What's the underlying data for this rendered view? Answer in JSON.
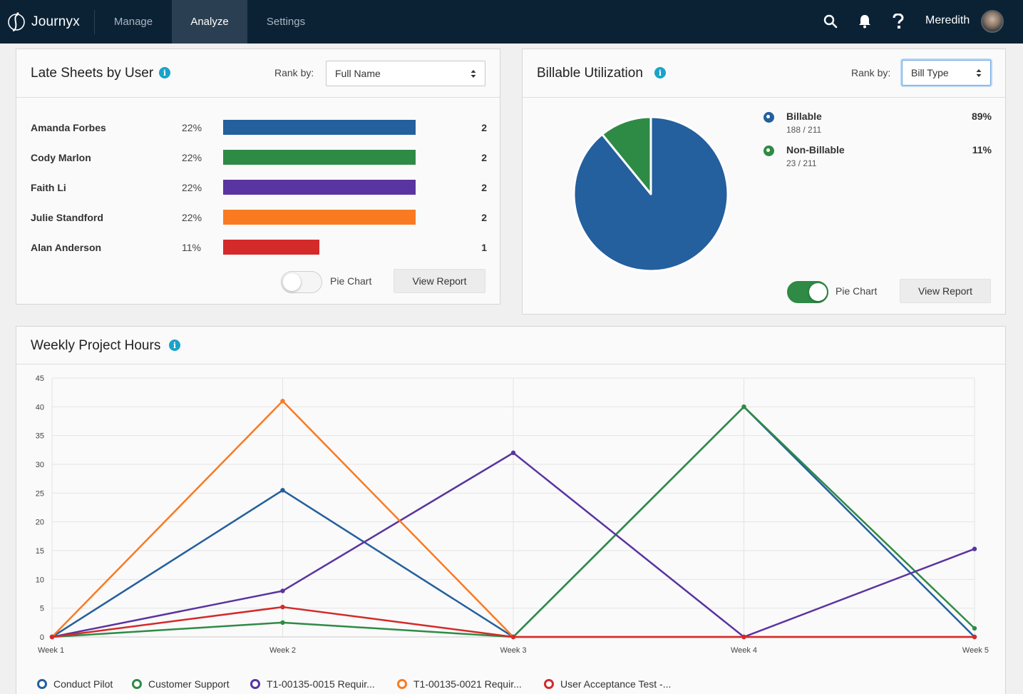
{
  "nav": {
    "brand": "Journyx",
    "tabs": [
      {
        "label": "Manage",
        "active": false
      },
      {
        "label": "Analyze",
        "active": true
      },
      {
        "label": "Settings",
        "active": false
      }
    ],
    "icons": [
      "search-icon",
      "bell-icon",
      "help-icon"
    ],
    "user_name": "Meredith"
  },
  "late_sheets": {
    "title": "Late Sheets by User",
    "rank_label": "Rank by:",
    "rank_value": "Full Name",
    "rows": [
      {
        "name": "Amanda Forbes",
        "percent": "22%",
        "count": "2",
        "fraction": 1.0,
        "color": "#245f9e"
      },
      {
        "name": "Cody Marlon",
        "percent": "22%",
        "count": "2",
        "fraction": 1.0,
        "color": "#2e8b45"
      },
      {
        "name": "Faith Li",
        "percent": "22%",
        "count": "2",
        "fraction": 1.0,
        "color": "#5a34a0"
      },
      {
        "name": "Julie Standford",
        "percent": "22%",
        "count": "2",
        "fraction": 1.0,
        "color": "#fa7a22"
      },
      {
        "name": "Alan Anderson",
        "percent": "11%",
        "count": "1",
        "fraction": 0.5,
        "color": "#d42a2a"
      }
    ],
    "toggle_label": "Pie Chart",
    "toggle_on": false,
    "view_report": "View Report"
  },
  "billable": {
    "title": "Billable Utilization",
    "rank_label": "Rank by:",
    "rank_value": "Bill Type",
    "legend": [
      {
        "name": "Billable",
        "sub": "188 / 211",
        "percent": "89%",
        "color": "#245f9e"
      },
      {
        "name": "Non-Billable",
        "sub": "23 / 211",
        "percent": "11%",
        "color": "#2e8b45"
      }
    ],
    "toggle_label": "Pie Chart",
    "toggle_on": true,
    "view_report": "View Report"
  },
  "weekly": {
    "title": "Weekly Project Hours"
  },
  "chart_data": [
    {
      "type": "pie",
      "labels": [
        "Billable",
        "Non-Billable"
      ],
      "values": [
        188,
        23
      ],
      "colors": [
        "#245f9e",
        "#2e8b45"
      ]
    },
    {
      "type": "line",
      "categories": [
        "Week 1",
        "Week 2",
        "Week 3",
        "Week 4",
        "Week 5"
      ],
      "ylim": [
        0,
        45
      ],
      "yticks": [
        0,
        5,
        10,
        15,
        20,
        25,
        30,
        35,
        40,
        45
      ],
      "grid": true,
      "legend": "bottom",
      "series": [
        {
          "name": "Conduct Pilot",
          "color": "#245f9e",
          "values": [
            0,
            25.5,
            0,
            40,
            0
          ]
        },
        {
          "name": "Customer Support",
          "color": "#2e8b45",
          "values": [
            0,
            2.5,
            0,
            40,
            1.5
          ]
        },
        {
          "name": "T1-00135-0015 Requir...",
          "color": "#5a34a0",
          "values": [
            0,
            8,
            32,
            0,
            15.3
          ]
        },
        {
          "name": "T1-00135-0021 Requir...",
          "color": "#fa7a22",
          "values": [
            0,
            41,
            0,
            0,
            0
          ]
        },
        {
          "name": "User Acceptance Test -...",
          "color": "#d42a2a",
          "values": [
            0,
            5.2,
            0,
            0,
            0
          ]
        }
      ]
    }
  ]
}
